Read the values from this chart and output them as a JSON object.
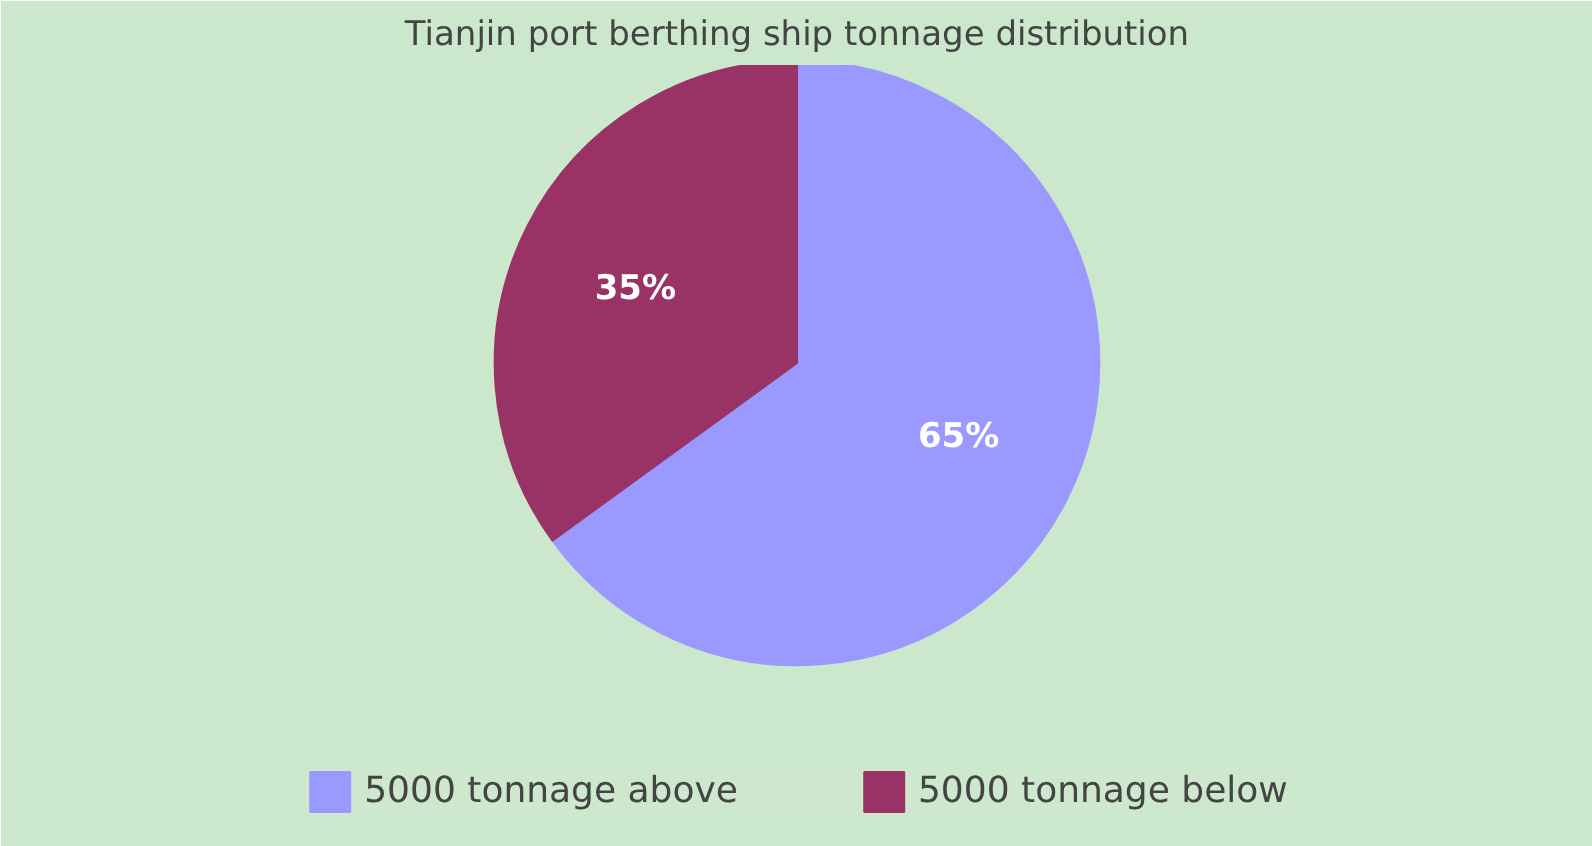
{
  "chart_data": {
    "type": "pie",
    "title": "Tianjin port berthing ship tonnage distribution",
    "categories": [
      "5000 tonnage above",
      "5000 tonnage below"
    ],
    "values": [
      65,
      35
    ],
    "colors": [
      "#9999ff",
      "#993366"
    ],
    "value_labels": [
      "65%",
      "35%"
    ],
    "legend": "bottom"
  }
}
